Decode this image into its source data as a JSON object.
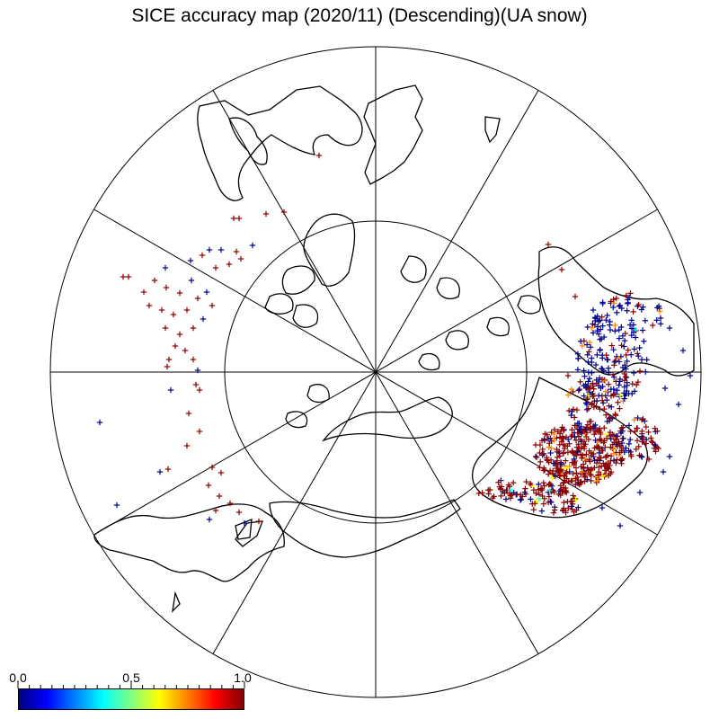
{
  "title": "SICE accuracy map (2020/11) (Descending)(UA snow)",
  "colorbar": {
    "labels": [
      "0.0",
      "0.5",
      "1.0"
    ],
    "min": 0.0,
    "max": 1.0,
    "colors": [
      "#000080",
      "#0000ff",
      "#0080ff",
      "#00ffff",
      "#80ff80",
      "#ffff00",
      "#ff8000",
      "#ff0000",
      "#800000"
    ]
  },
  "map": {
    "projection": "north-polar-stereographic",
    "meridian_interval_deg": 30,
    "inner_circle": true,
    "marker": "plus"
  },
  "point_colors": {
    "high": "#8b0000",
    "low": "#00008b",
    "mid_yellow": "#ffff00",
    "mid_orange": "#ff8000",
    "mid_cyan": "#00ffff",
    "mid_green": "#40ff80"
  },
  "land_color": "#000000"
}
